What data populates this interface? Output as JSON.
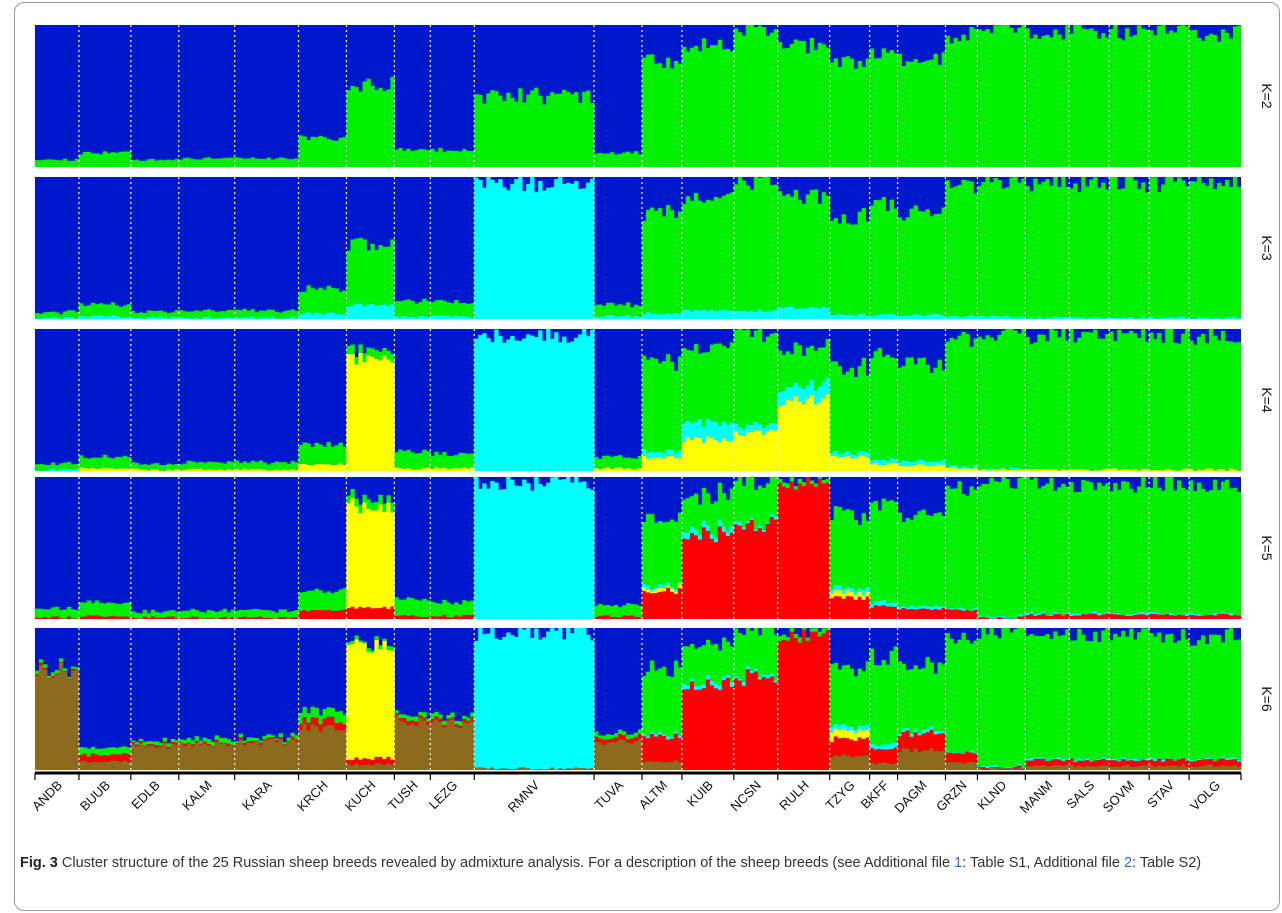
{
  "chart_data": {
    "type": "bar",
    "subtype": "stacked-100-percent-admixture",
    "k_labels": [
      "K=2",
      "K=3",
      "K=4",
      "K=5",
      "K=6"
    ],
    "cluster_colors": {
      "blue": "#0018cc",
      "green": "#00f000",
      "cyan": "#00ffff",
      "yellow": "#ffff00",
      "red": "#ff0000",
      "brown": "#8c6a1e"
    },
    "ylim": [
      0,
      1
    ],
    "breeds": [
      {
        "name": "ANDB",
        "n": 11,
        "K2": {
          "green": 0.05,
          "blue": 0.95
        },
        "K3": {
          "cyan": 0.01,
          "green": 0.04,
          "blue": 0.95
        },
        "K4": {
          "cyan": 0.01,
          "green": 0.04,
          "blue": 0.95
        },
        "K5": {
          "red": 0.01,
          "green": 0.06,
          "blue": 0.93
        },
        "K6": {
          "brown": 0.7,
          "red": 0.01,
          "green": 0.02,
          "blue": 0.27
        }
      },
      {
        "name": "BUUB",
        "n": 13,
        "K2": {
          "green": 0.1,
          "blue": 0.9
        },
        "K3": {
          "cyan": 0.02,
          "green": 0.08,
          "blue": 0.9
        },
        "K4": {
          "yellow": 0.02,
          "green": 0.08,
          "blue": 0.9
        },
        "K5": {
          "red": 0.02,
          "green": 0.1,
          "blue": 0.88
        },
        "K6": {
          "brown": 0.06,
          "red": 0.05,
          "green": 0.05,
          "blue": 0.84
        }
      },
      {
        "name": "EDLB",
        "n": 12,
        "K2": {
          "green": 0.05,
          "blue": 0.95
        },
        "K3": {
          "cyan": 0.01,
          "green": 0.04,
          "blue": 0.95
        },
        "K4": {
          "yellow": 0.01,
          "green": 0.04,
          "blue": 0.95
        },
        "K5": {
          "red": 0.01,
          "green": 0.04,
          "blue": 0.95
        },
        "K6": {
          "brown": 0.17,
          "red": 0.01,
          "green": 0.02,
          "blue": 0.8
        }
      },
      {
        "name": "KALM",
        "n": 14,
        "K2": {
          "green": 0.06,
          "blue": 0.94
        },
        "K3": {
          "cyan": 0.01,
          "green": 0.05,
          "blue": 0.94
        },
        "K4": {
          "yellow": 0.01,
          "green": 0.05,
          "blue": 0.94
        },
        "K5": {
          "red": 0.01,
          "green": 0.05,
          "blue": 0.94
        },
        "K6": {
          "brown": 0.18,
          "red": 0.01,
          "green": 0.03,
          "blue": 0.78
        }
      },
      {
        "name": "KARA",
        "n": 16,
        "K2": {
          "green": 0.06,
          "blue": 0.94
        },
        "K3": {
          "cyan": 0.01,
          "green": 0.05,
          "blue": 0.94
        },
        "K4": {
          "yellow": 0.01,
          "green": 0.05,
          "blue": 0.94
        },
        "K5": {
          "red": 0.01,
          "green": 0.05,
          "blue": 0.94
        },
        "K6": {
          "brown": 0.2,
          "red": 0.01,
          "green": 0.02,
          "blue": 0.77
        }
      },
      {
        "name": "KRCH",
        "n": 12,
        "K2": {
          "green": 0.2,
          "blue": 0.8
        },
        "K3": {
          "cyan": 0.04,
          "green": 0.17,
          "blue": 0.79
        },
        "K4": {
          "yellow": 0.05,
          "green": 0.14,
          "blue": 0.81
        },
        "K5": {
          "red": 0.06,
          "green": 0.14,
          "blue": 0.8
        },
        "K6": {
          "brown": 0.3,
          "red": 0.05,
          "green": 0.07,
          "blue": 0.58
        }
      },
      {
        "name": "KUCH",
        "n": 12,
        "K2": {
          "green": 0.58,
          "blue": 0.42
        },
        "K3": {
          "cyan": 0.1,
          "green": 0.42,
          "blue": 0.48
        },
        "K4": {
          "yellow": 0.8,
          "green": 0.06,
          "blue": 0.14
        },
        "K5": {
          "red": 0.08,
          "yellow": 0.72,
          "green": 0.06,
          "blue": 0.14
        },
        "K6": {
          "brown": 0.04,
          "red": 0.04,
          "yellow": 0.78,
          "green": 0.02,
          "blue": 0.12
        }
      },
      {
        "name": "TUSH",
        "n": 9,
        "K2": {
          "green": 0.12,
          "blue": 0.88
        },
        "K3": {
          "cyan": 0.02,
          "green": 0.11,
          "blue": 0.87
        },
        "K4": {
          "yellow": 0.02,
          "green": 0.12,
          "blue": 0.86
        },
        "K5": {
          "red": 0.02,
          "green": 0.12,
          "blue": 0.86
        },
        "K6": {
          "brown": 0.35,
          "red": 0.02,
          "green": 0.03,
          "blue": 0.6
        }
      },
      {
        "name": "LEZG",
        "n": 11,
        "K2": {
          "green": 0.12,
          "blue": 0.88
        },
        "K3": {
          "cyan": 0.02,
          "green": 0.1,
          "blue": 0.88
        },
        "K4": {
          "yellow": 0.02,
          "green": 0.1,
          "blue": 0.88
        },
        "K5": {
          "red": 0.02,
          "green": 0.1,
          "blue": 0.88
        },
        "K6": {
          "brown": 0.33,
          "red": 0.02,
          "green": 0.03,
          "blue": 0.62
        }
      },
      {
        "name": "RMNV",
        "n": 30,
        "K2": {
          "green": 0.5,
          "blue": 0.5
        },
        "K3": {
          "cyan": 0.95,
          "blue": 0.05
        },
        "K4": {
          "cyan": 0.95,
          "blue": 0.05
        },
        "K5": {
          "cyan": 0.96,
          "blue": 0.04
        },
        "K6": {
          "brown": 0.01,
          "cyan": 0.95,
          "blue": 0.04
        }
      },
      {
        "name": "TUVA",
        "n": 12,
        "K2": {
          "green": 0.1,
          "blue": 0.9
        },
        "K3": {
          "cyan": 0.02,
          "green": 0.08,
          "blue": 0.9
        },
        "K4": {
          "yellow": 0.02,
          "green": 0.08,
          "blue": 0.9
        },
        "K5": {
          "red": 0.02,
          "green": 0.08,
          "blue": 0.9
        },
        "K6": {
          "brown": 0.2,
          "red": 0.03,
          "green": 0.03,
          "blue": 0.74
        }
      },
      {
        "name": "ALTM",
        "n": 10,
        "K2": {
          "green": 0.75,
          "blue": 0.25
        },
        "K3": {
          "cyan": 0.04,
          "green": 0.71,
          "blue": 0.25
        },
        "K4": {
          "yellow": 0.1,
          "cyan": 0.04,
          "green": 0.62,
          "blue": 0.24
        },
        "K5": {
          "red": 0.2,
          "yellow": 0.02,
          "cyan": 0.02,
          "green": 0.48,
          "blue": 0.28
        },
        "K6": {
          "brown": 0.06,
          "red": 0.18,
          "cyan": 0.02,
          "green": 0.46,
          "blue": 0.28
        }
      },
      {
        "name": "KUIB",
        "n": 13,
        "K2": {
          "green": 0.85,
          "blue": 0.15
        },
        "K3": {
          "cyan": 0.06,
          "green": 0.8,
          "blue": 0.14
        },
        "K4": {
          "yellow": 0.22,
          "cyan": 0.12,
          "green": 0.52,
          "blue": 0.14
        },
        "K5": {
          "red": 0.6,
          "cyan": 0.04,
          "green": 0.24,
          "blue": 0.12
        },
        "K6": {
          "red": 0.6,
          "cyan": 0.03,
          "green": 0.26,
          "blue": 0.11
        }
      },
      {
        "name": "NCSN",
        "n": 11,
        "K2": {
          "green": 0.97,
          "blue": 0.03
        },
        "K3": {
          "cyan": 0.06,
          "green": 0.91,
          "blue": 0.03
        },
        "K4": {
          "yellow": 0.27,
          "cyan": 0.05,
          "green": 0.65,
          "blue": 0.03
        },
        "K5": {
          "red": 0.66,
          "cyan": 0.02,
          "green": 0.3,
          "blue": 0.02
        },
        "K6": {
          "red": 0.65,
          "cyan": 0.02,
          "green": 0.31,
          "blue": 0.02
        }
      },
      {
        "name": "RULH",
        "n": 13,
        "K2": {
          "green": 0.85,
          "blue": 0.15
        },
        "K3": {
          "cyan": 0.08,
          "green": 0.78,
          "blue": 0.14
        },
        "K4": {
          "yellow": 0.5,
          "cyan": 0.1,
          "green": 0.26,
          "blue": 0.14
        },
        "K5": {
          "red": 0.95,
          "green": 0.03,
          "blue": 0.02
        },
        "K6": {
          "red": 0.95,
          "green": 0.03,
          "blue": 0.02
        }
      },
      {
        "name": "TZYG",
        "n": 10,
        "K2": {
          "green": 0.72,
          "blue": 0.28
        },
        "K3": {
          "cyan": 0.03,
          "green": 0.69,
          "blue": 0.28
        },
        "K4": {
          "yellow": 0.1,
          "cyan": 0.03,
          "green": 0.6,
          "blue": 0.27
        },
        "K5": {
          "red": 0.15,
          "yellow": 0.04,
          "cyan": 0.03,
          "green": 0.5,
          "blue": 0.28
        },
        "K6": {
          "brown": 0.1,
          "red": 0.12,
          "yellow": 0.06,
          "cyan": 0.03,
          "green": 0.42,
          "blue": 0.27
        }
      },
      {
        "name": "BKFF",
        "n": 7,
        "K2": {
          "green": 0.8,
          "blue": 0.2
        },
        "K3": {
          "cyan": 0.03,
          "green": 0.78,
          "blue": 0.19
        },
        "K4": {
          "yellow": 0.05,
          "cyan": 0.03,
          "green": 0.73,
          "blue": 0.19
        },
        "K5": {
          "red": 0.09,
          "cyan": 0.03,
          "green": 0.68,
          "blue": 0.2
        },
        "K6": {
          "brown": 0.05,
          "red": 0.1,
          "cyan": 0.03,
          "green": 0.62,
          "blue": 0.2
        }
      },
      {
        "name": "DAGM",
        "n": 12,
        "K2": {
          "green": 0.75,
          "blue": 0.25
        },
        "K3": {
          "cyan": 0.03,
          "green": 0.72,
          "blue": 0.25
        },
        "K4": {
          "yellow": 0.04,
          "cyan": 0.03,
          "green": 0.68,
          "blue": 0.25
        },
        "K5": {
          "red": 0.07,
          "cyan": 0.02,
          "green": 0.64,
          "blue": 0.27
        },
        "K6": {
          "brown": 0.14,
          "red": 0.12,
          "cyan": 0.02,
          "green": 0.46,
          "blue": 0.26
        }
      },
      {
        "name": "GRZN",
        "n": 8,
        "K2": {
          "green": 0.93,
          "blue": 0.07
        },
        "K3": {
          "cyan": 0.02,
          "green": 0.91,
          "blue": 0.07
        },
        "K4": {
          "yellow": 0.02,
          "cyan": 0.01,
          "green": 0.9,
          "blue": 0.07
        },
        "K5": {
          "red": 0.06,
          "cyan": 0.01,
          "green": 0.86,
          "blue": 0.07
        },
        "K6": {
          "brown": 0.05,
          "red": 0.07,
          "cyan": 0.01,
          "green": 0.8,
          "blue": 0.07
        }
      },
      {
        "name": "KLND",
        "n": 12,
        "K2": {
          "green": 0.98,
          "blue": 0.02
        },
        "K3": {
          "cyan": 0.02,
          "green": 0.96,
          "blue": 0.02
        },
        "K4": {
          "yellow": 0.01,
          "cyan": 0.01,
          "green": 0.96,
          "blue": 0.02
        },
        "K5": {
          "red": 0.01,
          "cyan": 0.01,
          "green": 0.96,
          "blue": 0.02
        },
        "K6": {
          "brown": 0.01,
          "red": 0.01,
          "cyan": 0.01,
          "green": 0.95,
          "blue": 0.02
        }
      },
      {
        "name": "MANM",
        "n": 11,
        "K2": {
          "green": 0.95,
          "blue": 0.05
        },
        "K3": {
          "cyan": 0.01,
          "green": 0.94,
          "blue": 0.05
        },
        "K4": {
          "yellow": 0.01,
          "green": 0.94,
          "blue": 0.05
        },
        "K5": {
          "red": 0.03,
          "cyan": 0.01,
          "green": 0.91,
          "blue": 0.05
        },
        "K6": {
          "brown": 0.03,
          "red": 0.04,
          "cyan": 0.01,
          "green": 0.87,
          "blue": 0.05
        }
      },
      {
        "name": "SALS",
        "n": 10,
        "K2": {
          "green": 0.95,
          "blue": 0.05
        },
        "K3": {
          "cyan": 0.01,
          "green": 0.94,
          "blue": 0.05
        },
        "K4": {
          "yellow": 0.01,
          "green": 0.94,
          "blue": 0.05
        },
        "K5": {
          "red": 0.03,
          "cyan": 0.01,
          "green": 0.91,
          "blue": 0.05
        },
        "K6": {
          "brown": 0.03,
          "red": 0.04,
          "cyan": 0.01,
          "green": 0.87,
          "blue": 0.05
        }
      },
      {
        "name": "SOVM",
        "n": 10,
        "K2": {
          "green": 0.95,
          "blue": 0.05
        },
        "K3": {
          "cyan": 0.01,
          "green": 0.94,
          "blue": 0.05
        },
        "K4": {
          "yellow": 0.01,
          "green": 0.94,
          "blue": 0.05
        },
        "K5": {
          "red": 0.03,
          "cyan": 0.01,
          "green": 0.91,
          "blue": 0.05
        },
        "K6": {
          "brown": 0.03,
          "red": 0.04,
          "cyan": 0.01,
          "green": 0.87,
          "blue": 0.05
        }
      },
      {
        "name": "STAV",
        "n": 10,
        "K2": {
          "green": 0.96,
          "blue": 0.04
        },
        "K3": {
          "cyan": 0.01,
          "green": 0.95,
          "blue": 0.04
        },
        "K4": {
          "yellow": 0.01,
          "green": 0.95,
          "blue": 0.04
        },
        "K5": {
          "red": 0.03,
          "cyan": 0.01,
          "green": 0.92,
          "blue": 0.04
        },
        "K6": {
          "brown": 0.03,
          "red": 0.04,
          "cyan": 0.01,
          "green": 0.88,
          "blue": 0.04
        }
      },
      {
        "name": "VOLG",
        "n": 13,
        "K2": {
          "green": 0.94,
          "blue": 0.06
        },
        "K3": {
          "cyan": 0.01,
          "green": 0.93,
          "blue": 0.06
        },
        "K4": {
          "yellow": 0.01,
          "green": 0.93,
          "blue": 0.06
        },
        "K5": {
          "red": 0.03,
          "cyan": 0.01,
          "green": 0.9,
          "blue": 0.06
        },
        "K6": {
          "brown": 0.03,
          "red": 0.04,
          "cyan": 0.01,
          "green": 0.86,
          "blue": 0.06
        }
      }
    ]
  },
  "caption": {
    "label": "Fig. 3",
    "text": "Cluster structure of the 25 Russian sheep breeds revealed by admixture analysis. For a description of the sheep breeds (see Additional file ",
    "link1": "1",
    "text2": ": Table S1, Additional file ",
    "link2": "2",
    "text3": ": Table S2)"
  }
}
